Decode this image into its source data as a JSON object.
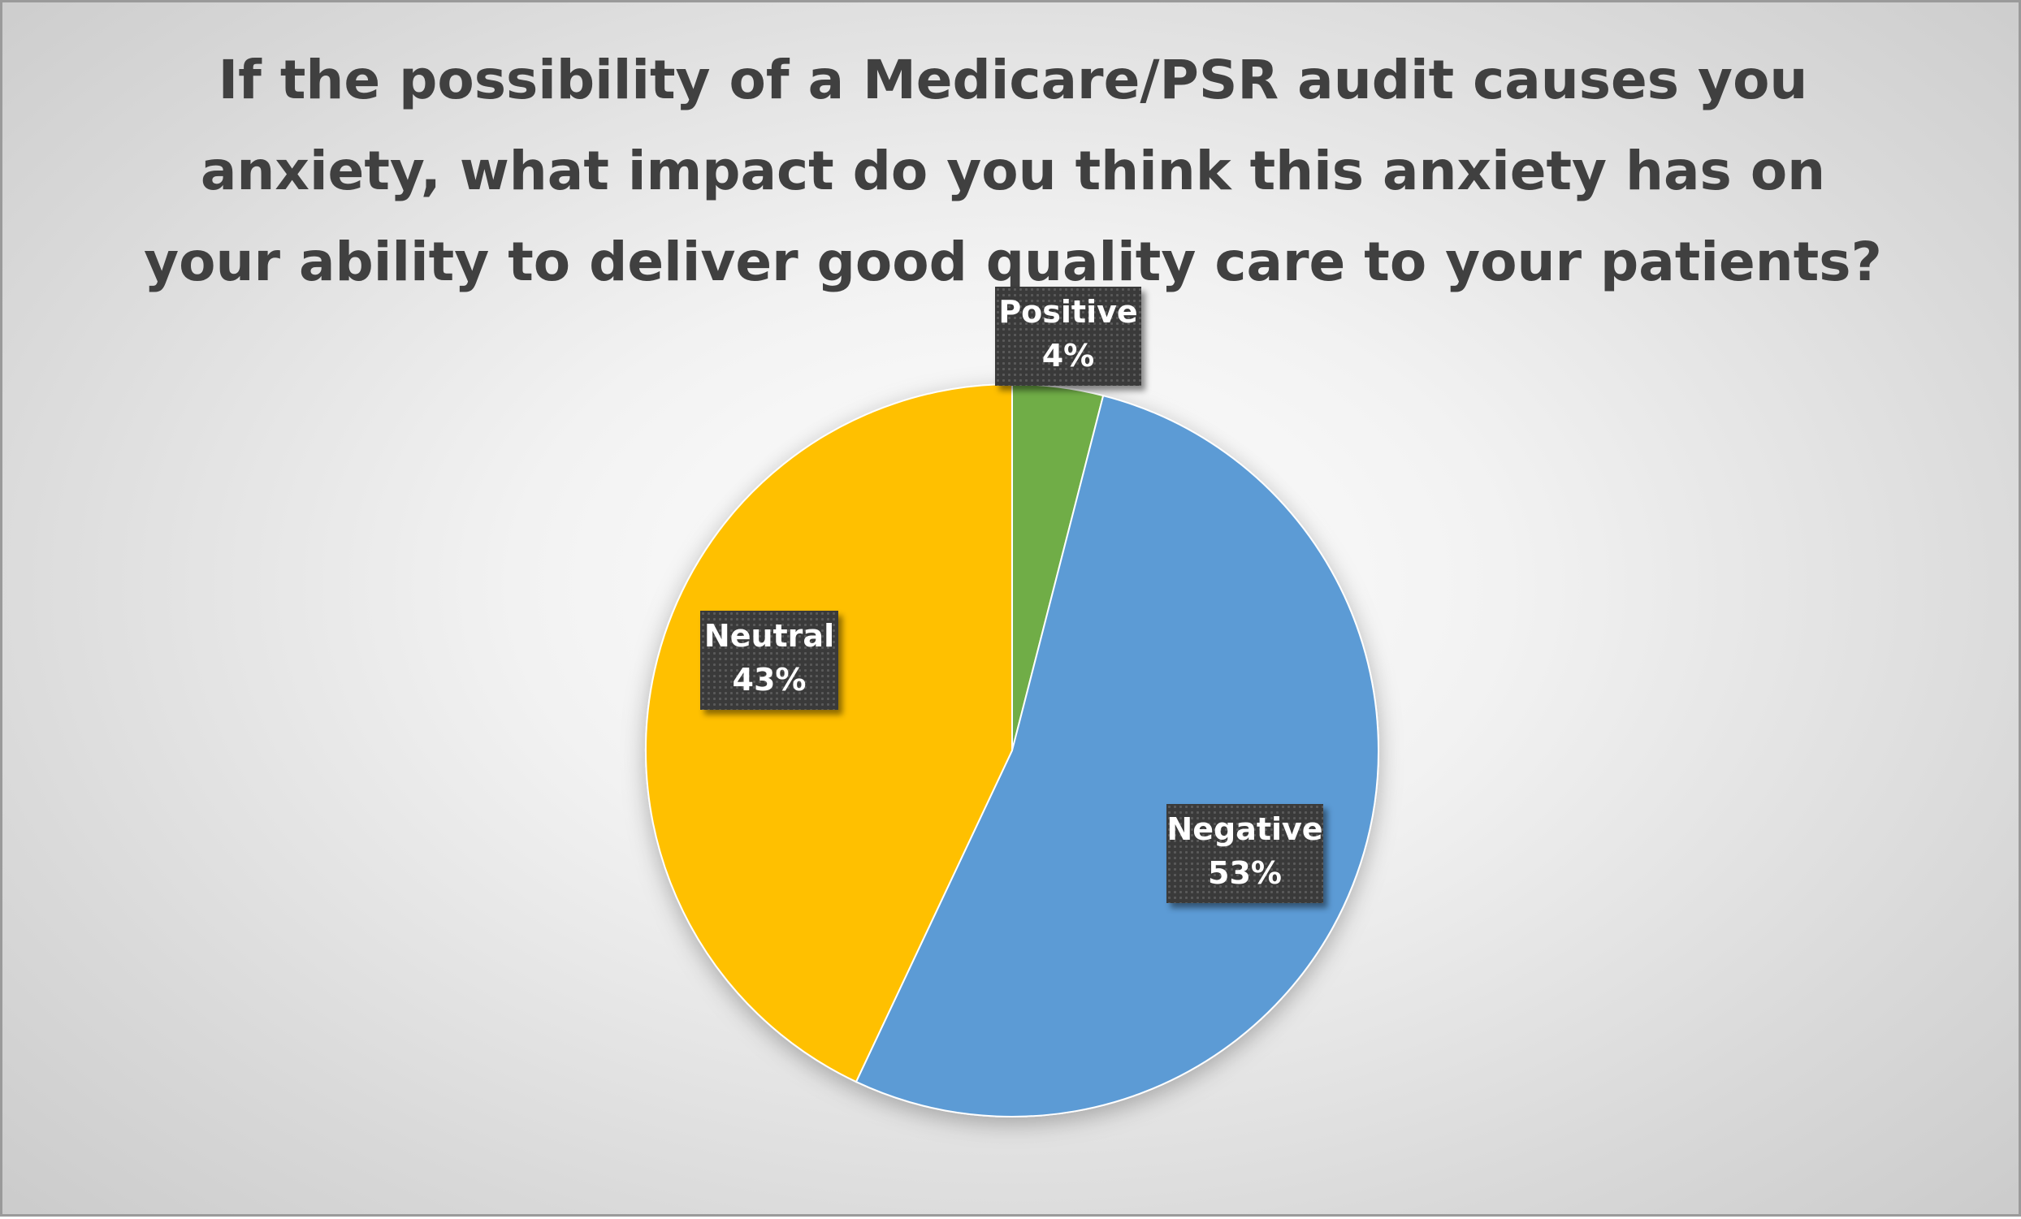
{
  "chart_data": {
    "type": "pie",
    "title_lines": [
      "If the possibility of a Medicare/PSR audit causes you",
      "anxiety, what impact do you think this anxiety has on",
      "your ability to deliver good quality care to your patients?"
    ],
    "slices": [
      {
        "label": "Positive",
        "value": 4,
        "value_label": "4%",
        "color": "#70ad47"
      },
      {
        "label": "Negative",
        "value": 53,
        "value_label": "53%",
        "color": "#5b9bd5"
      },
      {
        "label": "Neutral",
        "value": 43,
        "value_label": "43%",
        "color": "#ffc000"
      }
    ],
    "legend": "none",
    "data_labels": "category and percentage, dark dotted boxes"
  }
}
